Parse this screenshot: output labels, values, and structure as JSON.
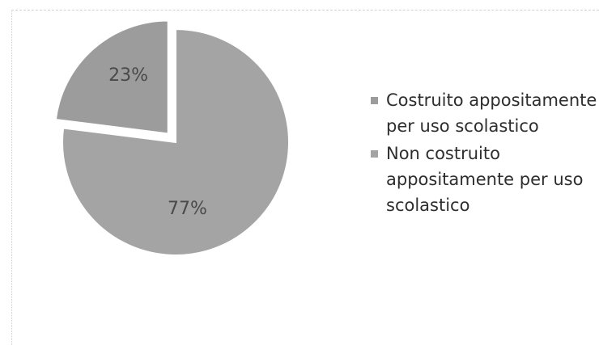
{
  "chart_data": {
    "type": "pie",
    "title": "",
    "slices": [
      {
        "label": "Costruito appositamente per uso scolastico",
        "value": 23,
        "display": "23%",
        "color": "#9c9c9c",
        "exploded": true
      },
      {
        "label": "Non costruito appositamente per uso scolastico",
        "value": 77,
        "display": "77%",
        "color": "#a4a4a4",
        "exploded": false
      }
    ],
    "legend_position": "right"
  }
}
